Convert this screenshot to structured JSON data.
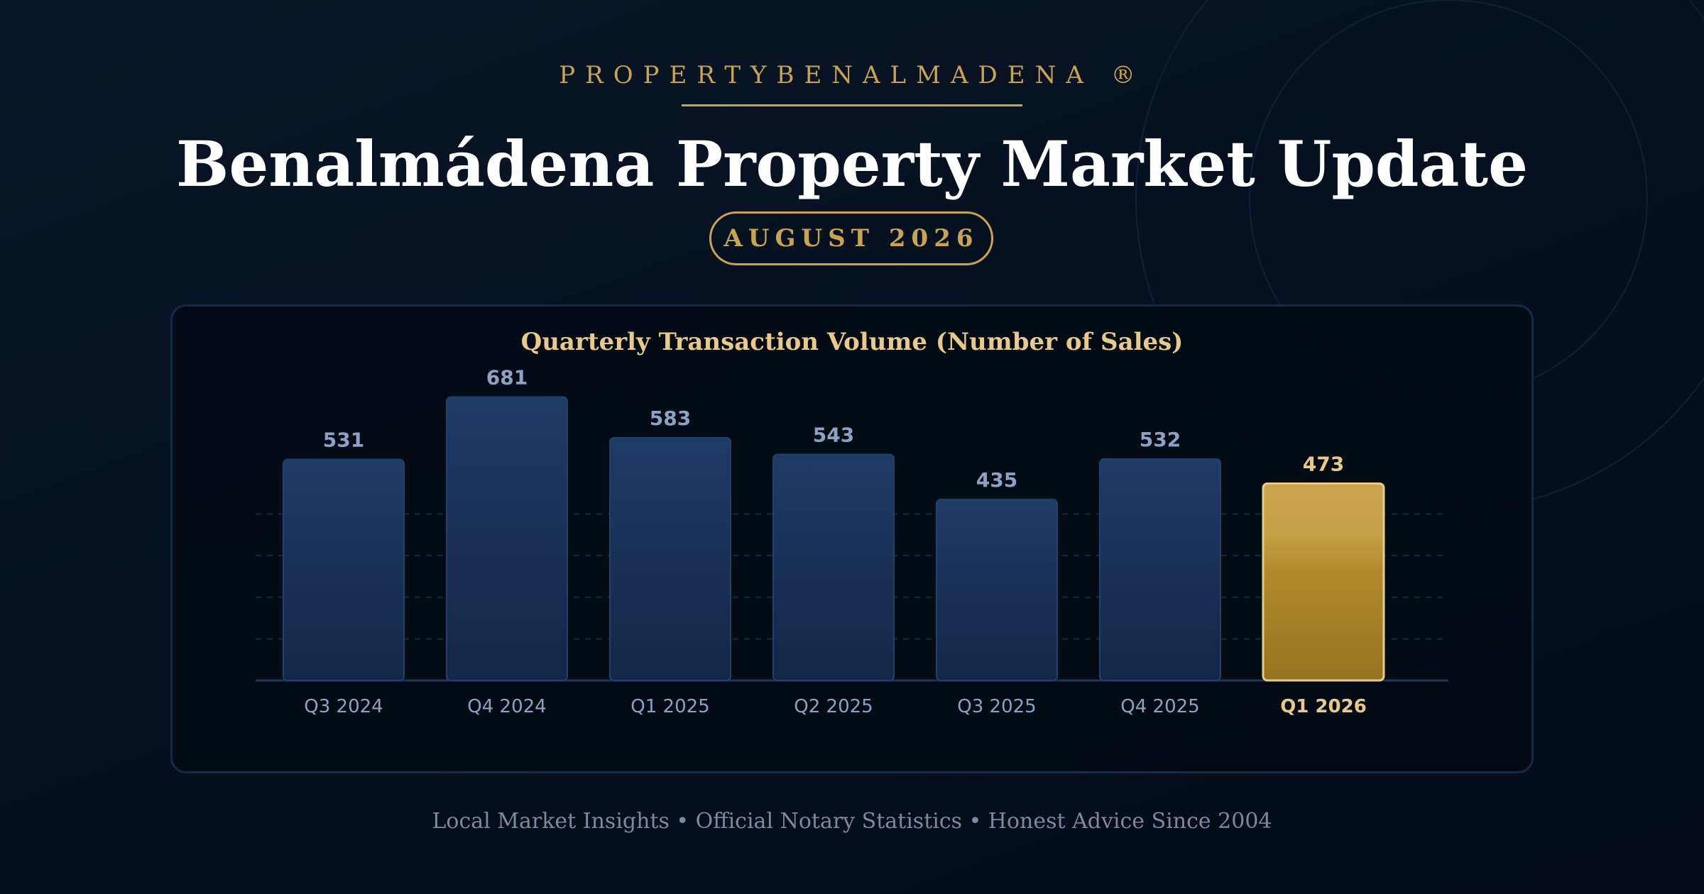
{
  "brand": "PROPERTYBENALMADENA ®",
  "headline": "Benalmádena Property Market Update",
  "date_badge": "AUGUST 2026",
  "footer": "Local Market Insights • Official Notary Statistics • Honest Advice Since 2004",
  "colors": {
    "background": "#06101f",
    "gold": "#c9a450",
    "bar_navy": "#1d3a63",
    "highlight_label": "#e8c987",
    "value_label": "#8aa2c4"
  },
  "chart_data": {
    "type": "bar",
    "title": "Quarterly Transaction Volume (Number of Sales)",
    "xlabel": "",
    "ylabel": "",
    "categories": [
      "Q3 2024",
      "Q4 2024",
      "Q1 2025",
      "Q2 2025",
      "Q3 2025",
      "Q4 2025",
      "Q1 2026"
    ],
    "values": [
      531,
      681,
      583,
      543,
      435,
      532,
      473
    ],
    "highlight_category": "Q1 2026",
    "ylim": [
      0,
      700
    ],
    "grid": true,
    "legend": false
  }
}
